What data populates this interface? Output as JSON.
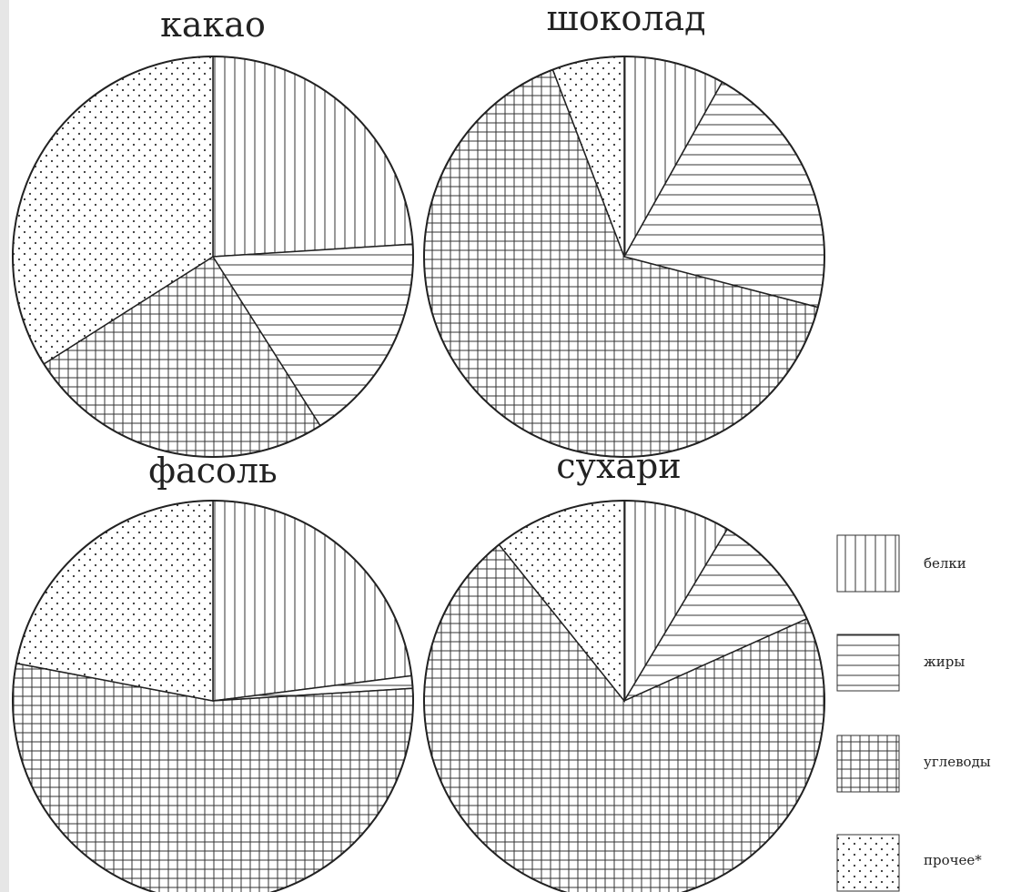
{
  "chart_data": {
    "type": "pie",
    "categories": [
      "белки",
      "жиры",
      "углеводы",
      "прочее*"
    ],
    "pies": [
      {
        "title": "какао",
        "values": [
          24,
          17,
          25,
          34
        ]
      },
      {
        "title": "шоколад",
        "values": [
          7,
          18,
          56,
          5
        ]
      },
      {
        "title": "фасоль",
        "values": [
          23,
          1,
          54,
          22
        ]
      },
      {
        "title": "сухари",
        "values": [
          8,
          9,
          66,
          10
        ]
      }
    ],
    "patterns": [
      "vertical-lines",
      "horizontal-lines",
      "grid",
      "dots"
    ],
    "legend_position": "right",
    "colors": {
      "stroke": "#222222",
      "background": "#ffffff"
    }
  }
}
